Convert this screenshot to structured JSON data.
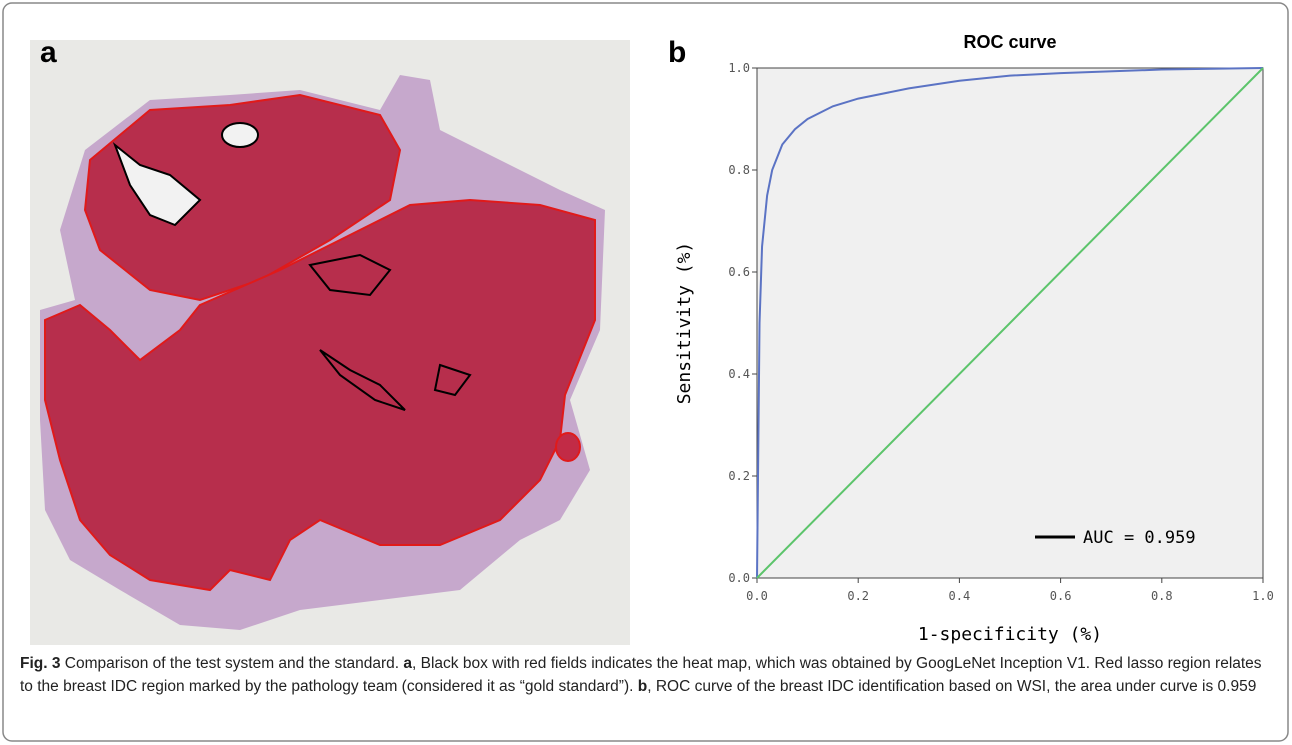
{
  "panels": [
    "a",
    "b"
  ],
  "chart_data": {
    "type": "line",
    "title": "ROC curve",
    "xlabel": "1-specificity (%)",
    "ylabel": "Sensitivity (%)",
    "xlim": [
      0,
      1
    ],
    "ylim": [
      0,
      1
    ],
    "xticks": [
      {
        "value": 0,
        "label": "0.0"
      },
      {
        "value": 0.2,
        "label": "0.2"
      },
      {
        "value": 0.4,
        "label": "0.4"
      },
      {
        "value": 0.6,
        "label": "0.6"
      },
      {
        "value": 0.8,
        "label": "0.8"
      },
      {
        "value": 1,
        "label": "1.0"
      }
    ],
    "yticks": [
      {
        "value": 0,
        "label": "0.0"
      },
      {
        "value": 0.2,
        "label": "0.2"
      },
      {
        "value": 0.4,
        "label": "0.4"
      },
      {
        "value": 0.6,
        "label": "0.6"
      },
      {
        "value": 0.8,
        "label": "0.8"
      },
      {
        "value": 1,
        "label": "1.0"
      }
    ],
    "annotation": "AUC = 0.959",
    "series": [
      {
        "color": "#5b73c4",
        "x": [
          0,
          0.005,
          0.01,
          0.02,
          0.03,
          0.05,
          0.075,
          0.1,
          0.15,
          0.2,
          0.3,
          0.4,
          0.5,
          0.6,
          0.8,
          1.0
        ],
        "values": [
          0,
          0.5,
          0.65,
          0.75,
          0.8,
          0.85,
          0.88,
          0.9,
          0.925,
          0.94,
          0.96,
          0.975,
          0.985,
          0.99,
          0.997,
          1.0
        ]
      },
      {
        "color": "#5cc46b",
        "x": [
          0,
          1
        ],
        "values": [
          0,
          1
        ]
      }
    ]
  },
  "caption": {
    "label": "Fig. 3",
    "parts": [
      "Comparison of the test system and the standard. ",
      "a",
      ", Black box with red fields indicates the heat map, which was obtained by GoogLeNet Inception V1. Red lasso region relates to the breast IDC region marked by the pathology team (considered it as “gold standard”). ",
      "b",
      ", ROC curve of the breast IDC identification based on WSI, the area under curve is 0.959"
    ]
  }
}
